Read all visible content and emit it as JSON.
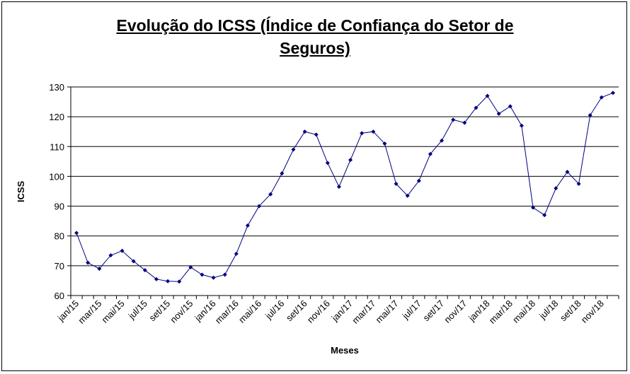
{
  "chart_data": {
    "type": "line",
    "title": [
      "Evolução do ICSS (Índice de Confiança do Setor de",
      "Seguros)"
    ],
    "xlabel": "Meses",
    "ylabel": "ICSS",
    "ylim": [
      60,
      130
    ],
    "yticks": [
      60,
      70,
      80,
      90,
      100,
      110,
      120,
      130
    ],
    "grid": true,
    "legend": "none",
    "series_color": "#000080",
    "xtick_labels": [
      "jan/15",
      "mar/15",
      "mai/15",
      "jul/15",
      "set/15",
      "nov/15",
      "jan/16",
      "mar/16",
      "mai/16",
      "jul/16",
      "set/16",
      "nov/16",
      "jan/17",
      "mar/17",
      "mai/17",
      "jul/17",
      "set/17",
      "nov/17",
      "jan/18",
      "mar/18",
      "mai/18",
      "jul/18",
      "set/18",
      "nov/18"
    ],
    "months": [
      "jan/15",
      "fev/15",
      "mar/15",
      "abr/15",
      "mai/15",
      "jun/15",
      "jul/15",
      "ago/15",
      "set/15",
      "out/15",
      "nov/15",
      "dez/15",
      "jan/16",
      "fev/16",
      "mar/16",
      "abr/16",
      "mai/16",
      "jun/16",
      "jul/16",
      "ago/16",
      "set/16",
      "out/16",
      "nov/16",
      "dez/16",
      "jan/17",
      "fev/17",
      "mar/17",
      "abr/17",
      "mai/17",
      "jun/17",
      "jul/17",
      "ago/17",
      "set/17",
      "out/17",
      "nov/17",
      "dez/17",
      "jan/18",
      "fev/18",
      "mar/18",
      "abr/18",
      "mai/18",
      "jun/18",
      "jul/18",
      "ago/18",
      "set/18",
      "out/18",
      "nov/18",
      "dez/18"
    ],
    "values": [
      81.0,
      71.0,
      69.0,
      73.5,
      75.0,
      71.5,
      68.5,
      65.5,
      64.8,
      64.7,
      69.5,
      67.0,
      66.0,
      67.0,
      74.0,
      83.5,
      90.0,
      94.0,
      101.0,
      109.0,
      115.0,
      114.0,
      104.5,
      96.5,
      105.5,
      114.5,
      115.0,
      111.0,
      97.5,
      93.5,
      98.5,
      107.5,
      112.0,
      119.0,
      118.0,
      123.0,
      127.0,
      121.0,
      123.5,
      117.0,
      89.5,
      87.0,
      96.0,
      101.5,
      97.5,
      120.5,
      126.5,
      128.0
    ]
  }
}
